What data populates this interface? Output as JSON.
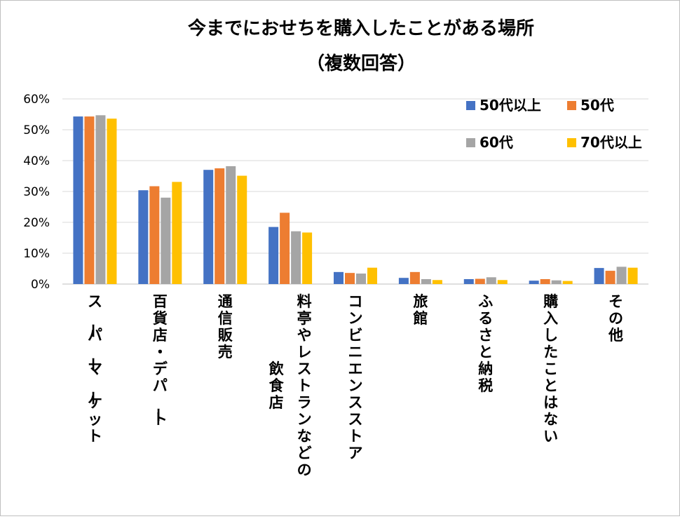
{
  "chart_data": {
    "type": "bar",
    "title": "今までにおせちを購入したことがある場所",
    "subtitle": "（複数回答）",
    "xlabel": "",
    "ylabel": "",
    "ylim": [
      0,
      60
    ],
    "yticks": [
      "0%",
      "10%",
      "20%",
      "30%",
      "40%",
      "50%",
      "60%"
    ],
    "grid": true,
    "legend": "top-right",
    "categories": [
      [
        "スーパーマーケット"
      ],
      [
        "百貨店・デパート"
      ],
      [
        "通信販売"
      ],
      [
        "料亭やレストランなどの",
        "飲食店"
      ],
      [
        "コンビニエンスストア"
      ],
      [
        "旅館"
      ],
      [
        "ふるさと納税"
      ],
      [
        "購入したことはない"
      ],
      [
        "その他"
      ]
    ],
    "series": [
      {
        "name": "50代以上",
        "color": "#4472C4",
        "values": [
          54.3,
          30.4,
          37.0,
          18.5,
          3.9,
          2.0,
          1.6,
          1.1,
          5.2
        ]
      },
      {
        "name": "50代",
        "color": "#ED7D31",
        "values": [
          54.3,
          31.7,
          37.5,
          23.1,
          3.6,
          3.9,
          1.7,
          1.6,
          4.3
        ]
      },
      {
        "name": "60代",
        "color": "#A5A5A5",
        "values": [
          54.7,
          28.0,
          38.2,
          17.1,
          3.4,
          1.6,
          2.2,
          1.2,
          5.6
        ]
      },
      {
        "name": "70代以上",
        "color": "#FFC000",
        "values": [
          53.6,
          33.1,
          35.1,
          16.7,
          5.3,
          1.3,
          1.3,
          1.0,
          5.3
        ]
      }
    ]
  }
}
